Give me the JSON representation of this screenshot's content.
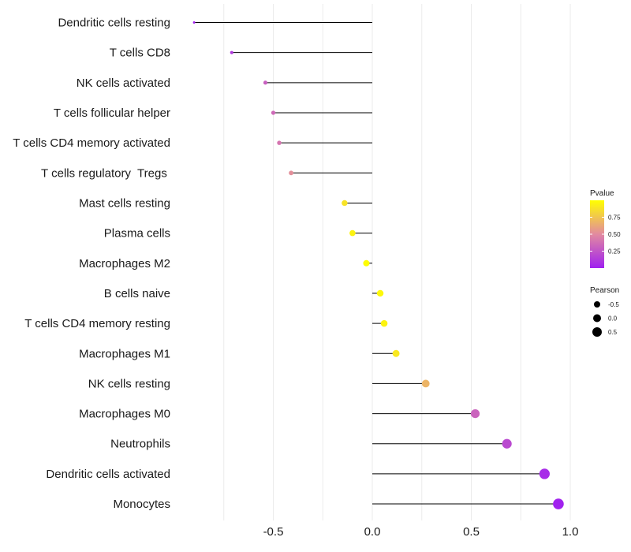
{
  "chart_data": {
    "type": "lollipop",
    "title": "",
    "xlabel": "",
    "ylabel": "",
    "xlim": [
      -0.9,
      1.0
    ],
    "x_ticks": [
      -0.5,
      0.0,
      0.5,
      1.0
    ],
    "x_tick_labels": [
      "-0.5",
      "0.0",
      "0.5",
      "1.0"
    ],
    "grid": true,
    "categories": [
      "Dendritic cells resting",
      "T cells CD8",
      "NK cells activated",
      "T cells follicular helper",
      "T cells CD4 memory activated",
      "T cells regulatory  Tregs ",
      "Mast cells resting",
      "Plasma cells",
      "Macrophages M2",
      "B cells naive",
      "T cells CD4 memory resting",
      "Macrophages M1",
      "NK cells resting",
      "Macrophages M0",
      "Neutrophils",
      "Dendritic cells activated",
      "Monocytes"
    ],
    "values": [
      -0.9,
      -0.71,
      -0.54,
      -0.5,
      -0.47,
      -0.41,
      -0.14,
      -0.1,
      -0.03,
      0.04,
      0.06,
      0.12,
      0.27,
      0.52,
      0.68,
      0.87,
      0.94
    ],
    "pvalues": [
      0.02,
      0.12,
      0.3,
      0.35,
      0.4,
      0.52,
      0.88,
      0.95,
      0.99,
      0.97,
      0.95,
      0.9,
      0.68,
      0.32,
      0.2,
      0.05,
      0.01
    ],
    "legend": {
      "color": {
        "title": "Pvalue",
        "ticks": [
          0.25,
          0.5,
          0.75
        ],
        "tick_labels": [
          "0.25",
          "0.50",
          "0.75"
        ],
        "range": [
          0.0,
          1.0
        ],
        "low_color": "#a020f0",
        "mid_color": "#e28aa0",
        "high_color": "#ffff00"
      },
      "size": {
        "title": "Pearson",
        "labels": [
          "-0.5",
          "0.0",
          "0.5"
        ],
        "values": [
          -0.5,
          0.0,
          0.5
        ]
      },
      "placement": "right"
    },
    "colors": {
      "stem": "#000000",
      "grid": "#ebebeb"
    }
  }
}
